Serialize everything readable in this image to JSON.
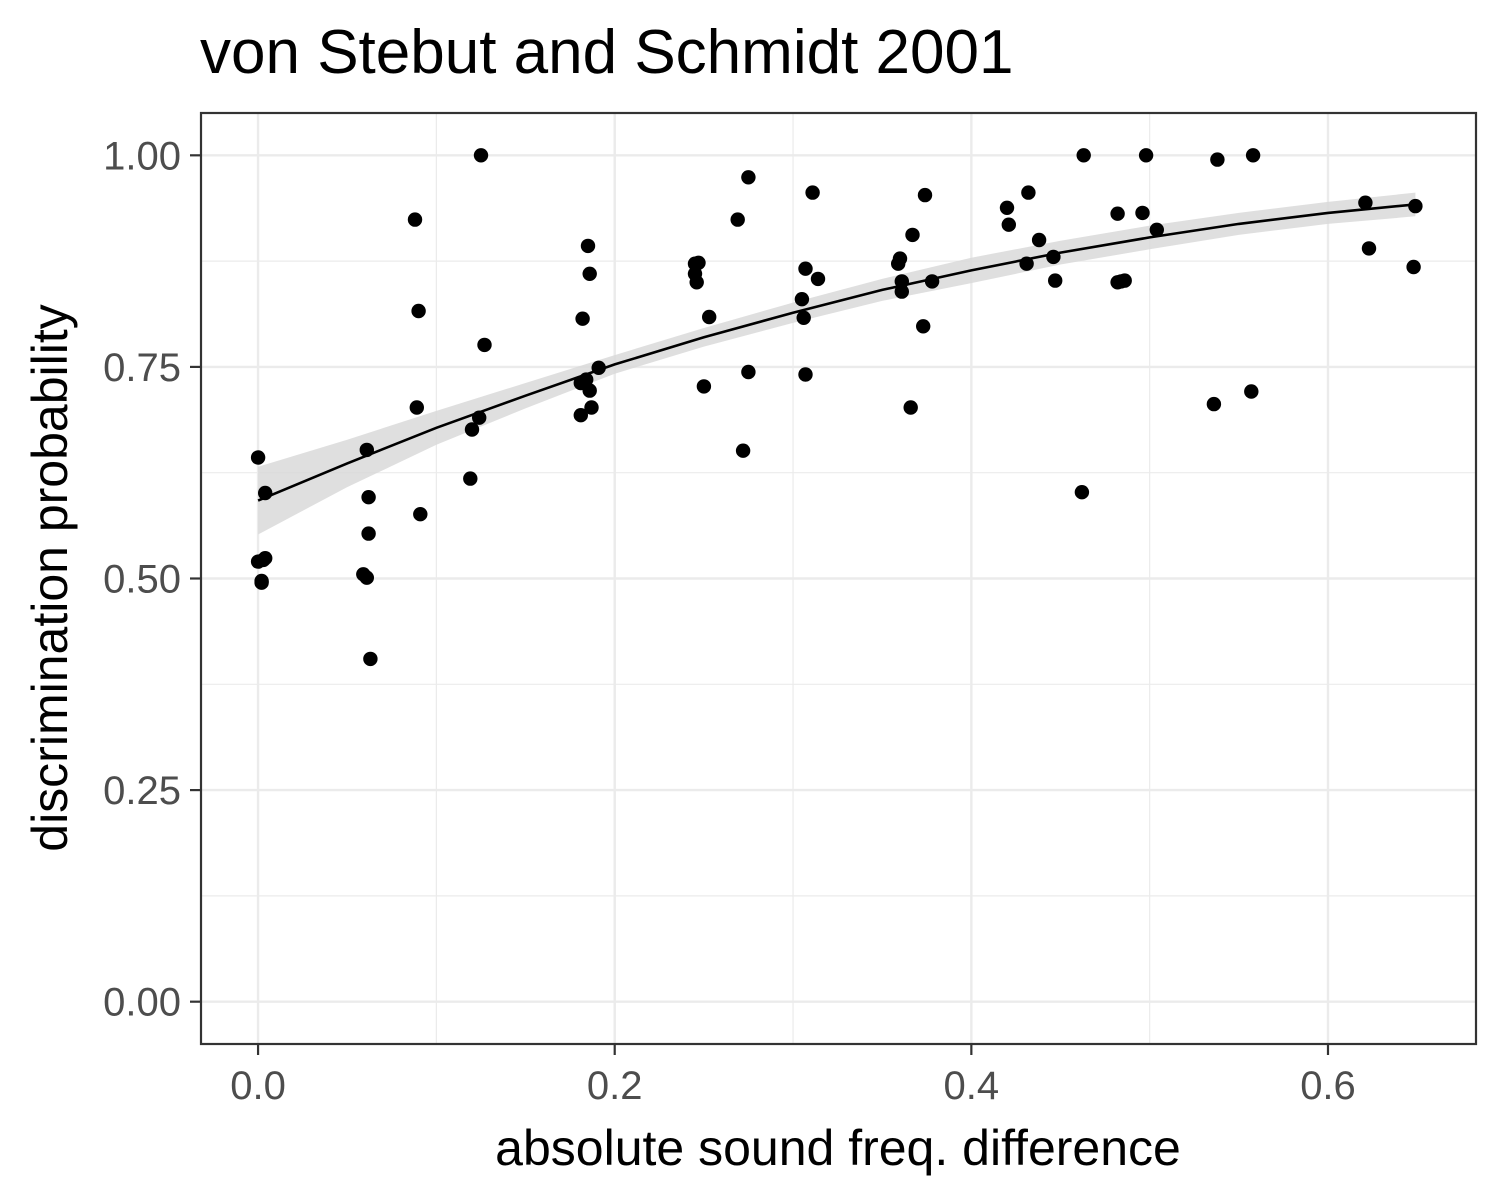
{
  "chart_data": {
    "type": "scatter",
    "title": "von Stebut and Schmidt 2001",
    "xlabel": "absolute sound freq. difference",
    "ylabel": "discrimination probability",
    "xlim": [
      -0.032,
      0.683
    ],
    "ylim": [
      -0.05,
      1.05
    ],
    "x_ticks": [
      0.0,
      0.2,
      0.4,
      0.6
    ],
    "x_tick_labels": [
      "0.0",
      "0.2",
      "0.4",
      "0.6"
    ],
    "y_ticks": [
      0.0,
      0.25,
      0.5,
      0.75,
      1.0
    ],
    "y_tick_labels": [
      "0.00",
      "0.25",
      "0.50",
      "0.75",
      "1.00"
    ],
    "x_minor_ticks": [
      0.1,
      0.3,
      0.5
    ],
    "y_minor_ticks": [
      0.125,
      0.375,
      0.625,
      0.875
    ],
    "grid": true,
    "legend": "none",
    "colors": {
      "points": "#000000",
      "fit_line": "#000000",
      "confidence_band": "#d9d9d9",
      "grid": "#ebebeb",
      "panel_border": "#333333"
    },
    "series": [
      {
        "kind": "points",
        "points": [
          [
            0.0,
            0.643
          ],
          [
            0.0,
            0.52
          ],
          [
            0.002,
            0.495
          ],
          [
            0.002,
            0.497
          ],
          [
            0.003,
            0.522
          ],
          [
            0.004,
            0.524
          ],
          [
            0.004,
            0.601
          ],
          [
            0.059,
            0.505
          ],
          [
            0.061,
            0.652
          ],
          [
            0.061,
            0.501
          ],
          [
            0.062,
            0.553
          ],
          [
            0.062,
            0.596
          ],
          [
            0.063,
            0.405
          ],
          [
            0.088,
            0.924
          ],
          [
            0.089,
            0.702
          ],
          [
            0.09,
            0.816
          ],
          [
            0.091,
            0.576
          ],
          [
            0.119,
            0.618
          ],
          [
            0.12,
            0.676
          ],
          [
            0.124,
            0.69
          ],
          [
            0.125,
            1.0
          ],
          [
            0.127,
            0.776
          ],
          [
            0.181,
            0.693
          ],
          [
            0.181,
            0.731
          ],
          [
            0.182,
            0.807
          ],
          [
            0.184,
            0.735
          ],
          [
            0.185,
            0.893
          ],
          [
            0.186,
            0.722
          ],
          [
            0.186,
            0.86
          ],
          [
            0.187,
            0.702
          ],
          [
            0.191,
            0.749
          ],
          [
            0.245,
            0.872
          ],
          [
            0.245,
            0.86
          ],
          [
            0.246,
            0.85
          ],
          [
            0.247,
            0.873
          ],
          [
            0.25,
            0.727
          ],
          [
            0.253,
            0.809
          ],
          [
            0.269,
            0.924
          ],
          [
            0.272,
            0.651
          ],
          [
            0.275,
            0.744
          ],
          [
            0.275,
            0.974
          ],
          [
            0.305,
            0.83
          ],
          [
            0.306,
            0.808
          ],
          [
            0.307,
            0.741
          ],
          [
            0.307,
            0.866
          ],
          [
            0.311,
            0.956
          ],
          [
            0.314,
            0.854
          ],
          [
            0.359,
            0.872
          ],
          [
            0.36,
            0.878
          ],
          [
            0.361,
            0.851
          ],
          [
            0.361,
            0.839
          ],
          [
            0.366,
            0.702
          ],
          [
            0.367,
            0.906
          ],
          [
            0.373,
            0.798
          ],
          [
            0.374,
            0.953
          ],
          [
            0.378,
            0.851
          ],
          [
            0.42,
            0.938
          ],
          [
            0.421,
            0.918
          ],
          [
            0.431,
            0.872
          ],
          [
            0.432,
            0.956
          ],
          [
            0.438,
            0.9
          ],
          [
            0.446,
            0.88
          ],
          [
            0.447,
            0.852
          ],
          [
            0.462,
            0.602
          ],
          [
            0.463,
            1.0
          ],
          [
            0.482,
            0.931
          ],
          [
            0.482,
            0.85
          ],
          [
            0.484,
            0.851
          ],
          [
            0.486,
            0.852
          ],
          [
            0.496,
            0.932
          ],
          [
            0.498,
            1.0
          ],
          [
            0.504,
            0.912
          ],
          [
            0.536,
            0.706
          ],
          [
            0.538,
            0.995
          ],
          [
            0.557,
            0.721
          ],
          [
            0.558,
            1.0
          ],
          [
            0.621,
            0.944
          ],
          [
            0.623,
            0.89
          ],
          [
            0.648,
            0.868
          ],
          [
            0.649,
            0.94
          ]
        ]
      },
      {
        "kind": "fit_line",
        "points": [
          [
            0.0,
            0.592
          ],
          [
            0.05,
            0.636
          ],
          [
            0.1,
            0.678
          ],
          [
            0.15,
            0.716
          ],
          [
            0.2,
            0.753
          ],
          [
            0.25,
            0.785
          ],
          [
            0.3,
            0.814
          ],
          [
            0.35,
            0.841
          ],
          [
            0.4,
            0.864
          ],
          [
            0.45,
            0.885
          ],
          [
            0.5,
            0.903
          ],
          [
            0.55,
            0.919
          ],
          [
            0.6,
            0.932
          ],
          [
            0.649,
            0.942
          ]
        ]
      },
      {
        "kind": "confidence_band",
        "upper": [
          [
            0.0,
            0.632
          ],
          [
            0.05,
            0.664
          ],
          [
            0.1,
            0.698
          ],
          [
            0.15,
            0.731
          ],
          [
            0.2,
            0.764
          ],
          [
            0.25,
            0.796
          ],
          [
            0.3,
            0.826
          ],
          [
            0.35,
            0.854
          ],
          [
            0.4,
            0.879
          ],
          [
            0.45,
            0.899
          ],
          [
            0.5,
            0.917
          ],
          [
            0.55,
            0.932
          ],
          [
            0.6,
            0.945
          ],
          [
            0.649,
            0.956
          ]
        ],
        "lower": [
          [
            0.0,
            0.552
          ],
          [
            0.05,
            0.608
          ],
          [
            0.1,
            0.658
          ],
          [
            0.15,
            0.701
          ],
          [
            0.2,
            0.742
          ],
          [
            0.25,
            0.774
          ],
          [
            0.3,
            0.802
          ],
          [
            0.35,
            0.828
          ],
          [
            0.4,
            0.849
          ],
          [
            0.45,
            0.871
          ],
          [
            0.5,
            0.889
          ],
          [
            0.55,
            0.906
          ],
          [
            0.6,
            0.919
          ],
          [
            0.649,
            0.928
          ]
        ]
      }
    ]
  }
}
